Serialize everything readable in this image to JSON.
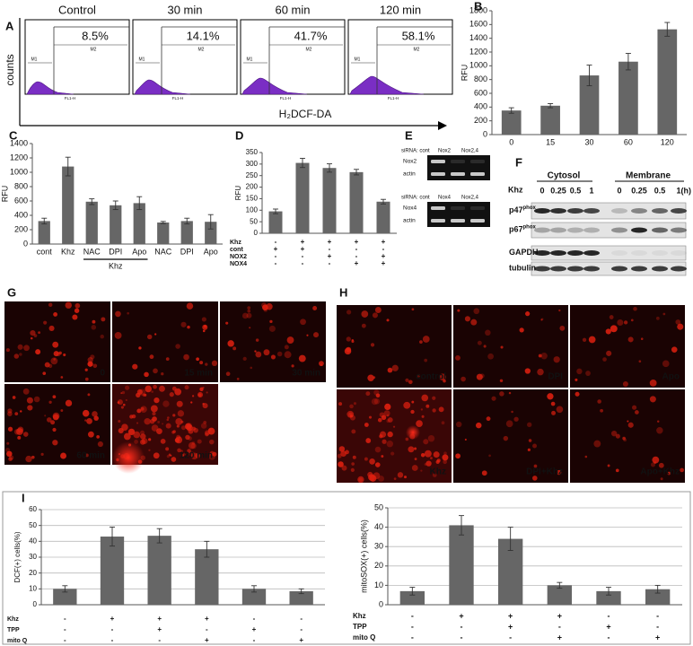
{
  "flow_cytometry": {
    "panel": "A",
    "y_label": "counts",
    "x_label": "H₂DCF-DA",
    "gate_labels": [
      "M1",
      "M2"
    ],
    "axis_label": "FL1-H",
    "samples": [
      {
        "title": "Control",
        "percent": "8.5%"
      },
      {
        "title": "30 min",
        "percent": "14.1%"
      },
      {
        "title": "60 min",
        "percent": "41.7%"
      },
      {
        "title": "120 min",
        "percent": "58.1%"
      }
    ]
  },
  "chart_data": [
    {
      "type": "bar",
      "panel": "B",
      "ylabel": "RFU",
      "categories": [
        "0",
        "15",
        "30",
        "60",
        "120"
      ],
      "values": [
        350,
        420,
        860,
        1060,
        1530
      ],
      "errors": [
        40,
        30,
        150,
        120,
        100
      ],
      "color": "#666666",
      "ylim": [
        0,
        1800
      ],
      "yticks": [
        0,
        200,
        400,
        600,
        800,
        1000,
        1200,
        1400,
        1600,
        1800
      ],
      "grid": false
    },
    {
      "type": "bar",
      "panel": "C",
      "ylabel": "RFU",
      "categories": [
        "cont",
        "Khz",
        "NAC",
        "DPI",
        "Apo",
        "NAC",
        "DPI",
        "Apo"
      ],
      "group_label": "Khz",
      "values": [
        320,
        1080,
        590,
        540,
        570,
        300,
        320,
        310
      ],
      "errors": [
        40,
        130,
        40,
        60,
        90,
        15,
        40,
        100
      ],
      "color": "#666666",
      "ylim": [
        0,
        1400
      ],
      "yticks": [
        0,
        200,
        400,
        600,
        800,
        1000,
        1200,
        1400
      ],
      "grid": false
    },
    {
      "type": "bar",
      "panel": "D",
      "ylabel": "RFU",
      "values": [
        95,
        305,
        283,
        265,
        137
      ],
      "errors": [
        10,
        20,
        18,
        12,
        10
      ],
      "color": "#666666",
      "ylim": [
        0,
        350
      ],
      "yticks": [
        0,
        50,
        100,
        150,
        200,
        250,
        300,
        350
      ],
      "grid": false,
      "conditions": [
        {
          "name": "Khz",
          "marks": [
            "-",
            "+",
            "+",
            "+",
            "+"
          ]
        },
        {
          "name": "cont",
          "marks": [
            "+",
            "+",
            "-",
            "-",
            "-"
          ]
        },
        {
          "name": "NOX2",
          "marks": [
            "-",
            "-",
            "+",
            "-",
            "+"
          ]
        },
        {
          "name": "NOX4",
          "marks": [
            "-",
            "-",
            "-",
            "+",
            "+"
          ]
        }
      ]
    },
    {
      "type": "bar",
      "panel": "I",
      "ylabel": "DCF(+) cells(%)",
      "values": [
        10,
        43,
        43.5,
        35,
        10,
        8.5
      ],
      "errors": [
        2,
        6,
        4.5,
        5,
        2,
        1.5
      ],
      "color": "#666666",
      "ylim": [
        0,
        60
      ],
      "yticks": [
        0,
        10,
        20,
        30,
        40,
        50,
        60
      ],
      "grid": true,
      "conditions": [
        {
          "name": "Khz",
          "marks": [
            "-",
            "+",
            "+",
            "+",
            "-",
            "-"
          ]
        },
        {
          "name": "TPP",
          "marks": [
            "-",
            "-",
            "+",
            "-",
            "+",
            "-"
          ]
        },
        {
          "name": "mito Q",
          "marks": [
            "-",
            "-",
            "-",
            "+",
            "-",
            "+"
          ]
        }
      ]
    },
    {
      "type": "bar",
      "ylabel": "mitoSOX(+) cells(%)",
      "values": [
        7,
        41,
        34,
        10,
        7,
        8
      ],
      "errors": [
        2,
        5,
        6,
        1.5,
        2,
        2
      ],
      "color": "#666666",
      "ylim": [
        0,
        50
      ],
      "yticks": [
        0,
        10,
        20,
        30,
        40,
        50
      ],
      "grid": true,
      "conditions": [
        {
          "name": "Khz",
          "marks": [
            "-",
            "+",
            "+",
            "+",
            "-",
            "-"
          ]
        },
        {
          "name": "TPP",
          "marks": [
            "-",
            "-",
            "+",
            "-",
            "+",
            "-"
          ]
        },
        {
          "name": "mito Q",
          "marks": [
            "-",
            "-",
            "-",
            "+",
            "-",
            "+"
          ]
        }
      ]
    }
  ],
  "blots_E": {
    "panel": "E",
    "blots": [
      {
        "header": [
          "siRNA: cont",
          "Nox2",
          "Nox2,4"
        ],
        "rows": [
          "Nox2",
          "actin"
        ]
      },
      {
        "header": [
          "siRNA: cont",
          "Nox4",
          "Nox2,4"
        ],
        "rows": [
          "Nox4",
          "actin"
        ]
      }
    ]
  },
  "blots_F": {
    "panel": "F",
    "groups": [
      "Cytosol",
      "Membrane"
    ],
    "treatment": "Khz",
    "times": [
      "0",
      "0.25",
      "0.5",
      "1",
      "0",
      "0.25",
      "0.5",
      "1"
    ],
    "unit": "(h)",
    "rows": [
      {
        "name": "p47",
        "sup": "phox"
      },
      {
        "name": "p67",
        "sup": "phox"
      },
      {
        "name": "GAPDH"
      },
      {
        "name": "tubulin"
      }
    ]
  },
  "images_G": {
    "panel": "G",
    "labels": [
      "0",
      "15 min",
      "30 min",
      "60 min",
      "120 min"
    ]
  },
  "images_H": {
    "panel": "H",
    "labels": [
      "control",
      "DPI",
      "Apo",
      "Khz",
      "DPI+Khz",
      "Apo+Khz"
    ]
  }
}
